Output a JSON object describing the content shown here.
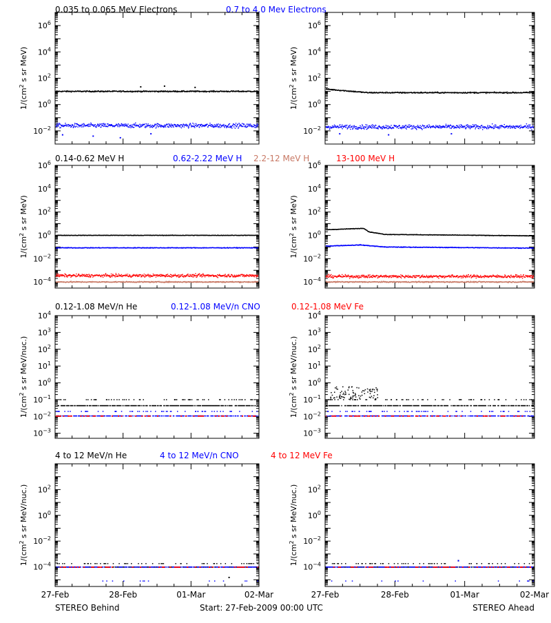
{
  "colors": {
    "black": "#000000",
    "blue": "#0000ff",
    "tan": "#c87864",
    "red": "#ff0000",
    "gray": "#888888"
  },
  "legends": [
    {
      "items": [
        {
          "text": "0.035 to 0.065 MeV Electrons",
          "color": "#000000"
        },
        {
          "text": "0.7 to 4.0 Mev Electrons",
          "color": "#0000ff"
        }
      ]
    },
    {
      "items": [
        {
          "text": "0.14-0.62 MeV H",
          "color": "#000000"
        },
        {
          "text": "0.62-2.22 MeV H",
          "color": "#0000ff"
        },
        {
          "text": "2.2-12 MeV H",
          "color": "#c87864"
        },
        {
          "text": "13-100 MeV H",
          "color": "#ff0000"
        }
      ]
    },
    {
      "items": [
        {
          "text": "0.12-1.08 MeV/n He",
          "color": "#000000"
        },
        {
          "text": "0.12-1.08 MeV/n CNO",
          "color": "#0000ff"
        },
        {
          "text": "0.12-1.08 MeV Fe",
          "color": "#ff0000"
        }
      ]
    },
    {
      "items": [
        {
          "text": "4 to 12 MeV/n He",
          "color": "#000000"
        },
        {
          "text": "4 to 12 MeV/n CNO",
          "color": "#0000ff"
        },
        {
          "text": "4 to 12 MeV Fe",
          "color": "#ff0000"
        }
      ]
    }
  ],
  "footer": {
    "left": "STEREO Behind",
    "center": "Start: 27-Feb-2009 00:00 UTC",
    "right": "STEREO Ahead"
  },
  "chart_data": [
    {
      "type": "scatter",
      "row": 0,
      "spacecraft": "STEREO Behind",
      "scale": "log",
      "ylabel_main": "1/(cm",
      "ylabel_sup": "2",
      "ylabel_tail": " s sr MeV)",
      "ylim": [
        0.001,
        10000000
      ],
      "yticks": [
        0.01,
        1,
        100,
        10000,
        1000000
      ],
      "xlabels": [
        "27-Feb",
        "28-Feb",
        "01-Mar",
        "02-Mar"
      ],
      "xdays": [
        0,
        1,
        2,
        3
      ],
      "series": [
        {
          "name": "0.035 to 0.065 MeV Electrons",
          "color": "#000000",
          "level": 10,
          "spread": 0.08,
          "outliers": [
            [
              1.6,
              25
            ],
            [
              2.05,
              20
            ],
            [
              1.25,
              22
            ]
          ]
        },
        {
          "name": "0.7 to 4.0 Mev Electrons",
          "color": "#0000ff",
          "level": 0.025,
          "spread": 0.28,
          "outliers": [
            [
              0.1,
              0.005
            ],
            [
              0.55,
              0.004
            ],
            [
              0.95,
              0.003
            ],
            [
              1.4,
              0.006
            ]
          ]
        }
      ]
    },
    {
      "type": "scatter",
      "row": 0,
      "spacecraft": "STEREO Ahead",
      "scale": "log",
      "ylabel_main": "1/(cm",
      "ylabel_sup": "2",
      "ylabel_tail": " s sr MeV)",
      "ylim": [
        0.001,
        10000000
      ],
      "yticks": [
        0.01,
        1,
        100,
        10000,
        1000000
      ],
      "xlabels": [
        "27-Feb",
        "28-Feb",
        "01-Mar",
        "02-Mar"
      ],
      "xdays": [
        0,
        1,
        2,
        3
      ],
      "series": [
        {
          "name": "0.035 to 0.065 MeV Electrons",
          "color": "#000000",
          "level": 9,
          "spread": 0.08,
          "bump": [
            [
              0,
              15
            ],
            [
              0.6,
              8
            ],
            [
              3,
              8
            ]
          ],
          "outliers": []
        },
        {
          "name": "0.7 to 4.0 Mev Electrons",
          "color": "#0000ff",
          "level": 0.02,
          "spread": 0.28,
          "outliers": [
            [
              0.2,
              0.006
            ],
            [
              0.9,
              0.005
            ],
            [
              1.8,
              0.006
            ]
          ]
        }
      ]
    },
    {
      "type": "scatter",
      "row": 1,
      "spacecraft": "STEREO Behind",
      "scale": "log",
      "ylabel_main": "1/(cm",
      "ylabel_sup": "2",
      "ylabel_tail": " s sr MeV)",
      "ylim": [
        3e-05,
        1000000
      ],
      "yticks": [
        0.0001,
        0.01,
        1,
        100,
        10000,
        1000000
      ],
      "xlabels": [
        "27-Feb",
        "28-Feb",
        "01-Mar",
        "02-Mar"
      ],
      "xdays": [
        0,
        1,
        2,
        3
      ],
      "series": [
        {
          "name": "0.14-0.62 MeV H",
          "color": "#000000",
          "level": 1,
          "spread": 0.04,
          "outliers": []
        },
        {
          "name": "0.62-2.22 MeV H",
          "color": "#0000ff",
          "level": 0.085,
          "spread": 0.05,
          "outliers": []
        },
        {
          "name": "13-100 MeV H",
          "color": "#ff0000",
          "level": 0.00035,
          "spread": 0.22,
          "outliers": []
        },
        {
          "name": "2.2-12 MeV H",
          "color": "#c87864",
          "level": 0.0001,
          "spread": 0.08,
          "outliers": []
        }
      ]
    },
    {
      "type": "scatter",
      "row": 1,
      "spacecraft": "STEREO Ahead",
      "scale": "log",
      "ylabel_main": "1/(cm",
      "ylabel_sup": "2",
      "ylabel_tail": " s sr MeV)",
      "ylim": [
        3e-05,
        1000000
      ],
      "yticks": [
        0.0001,
        0.01,
        1,
        100,
        10000,
        1000000
      ],
      "xlabels": [
        "27-Feb",
        "28-Feb",
        "01-Mar",
        "02-Mar"
      ],
      "xdays": [
        0,
        1,
        2,
        3
      ],
      "series": [
        {
          "name": "0.14-0.62 MeV H",
          "color": "#000000",
          "level": 0.9,
          "spread": 0.04,
          "bump": [
            [
              0,
              3
            ],
            [
              0.55,
              4
            ],
            [
              0.62,
              2
            ],
            [
              0.85,
              1.2
            ],
            [
              3,
              0.9
            ]
          ],
          "outliers": []
        },
        {
          "name": "0.62-2.22 MeV H",
          "color": "#0000ff",
          "level": 0.08,
          "spread": 0.05,
          "bump": [
            [
              0,
              0.12
            ],
            [
              0.5,
              0.15
            ],
            [
              0.85,
              0.1
            ],
            [
              3,
              0.08
            ]
          ],
          "outliers": []
        },
        {
          "name": "13-100 MeV H",
          "color": "#ff0000",
          "level": 0.0003,
          "spread": 0.22,
          "outliers": []
        },
        {
          "name": "2.2-12 MeV H",
          "color": "#c87864",
          "level": 0.0001,
          "spread": 0.08,
          "outliers": []
        }
      ]
    },
    {
      "type": "scatter",
      "row": 2,
      "spacecraft": "STEREO Behind",
      "scale": "log",
      "ylabel_main": "1/(cm",
      "ylabel_sup": "2",
      "ylabel_tail": " s sr MeV/nuc.)",
      "ylim": [
        0.0005,
        10000
      ],
      "yticks": [
        0.001,
        0.01,
        0.1,
        1,
        10,
        100,
        1000,
        10000
      ],
      "xlabels": [
        "27-Feb",
        "28-Feb",
        "01-Mar",
        "02-Mar"
      ],
      "xdays": [
        0,
        1,
        2,
        3
      ],
      "series": [
        {
          "name": "0.12-1.08 MeV/n He",
          "color": "#000000",
          "level": 0.045,
          "spread": 0.0,
          "sparseUpper": 0.1,
          "outliers": []
        },
        {
          "name": "0.12-1.08 MeV/n CNO",
          "color": "#0000ff",
          "level": 0.011,
          "spread": 0.0,
          "sparseUpper": 0.02,
          "outliers": []
        },
        {
          "name": "0.12-1.08 MeV Fe",
          "color": "#ff0000",
          "level": 0.011,
          "spread": 0.0,
          "sparse": true,
          "outliers": []
        }
      ]
    },
    {
      "type": "scatter",
      "row": 2,
      "spacecraft": "STEREO Ahead",
      "scale": "log",
      "ylabel_main": "1/(cm",
      "ylabel_sup": "2",
      "ylabel_tail": " s sr MeV/nuc.)",
      "ylim": [
        0.0005,
        10000
      ],
      "yticks": [
        0.001,
        0.01,
        0.1,
        1,
        10,
        100,
        1000,
        10000
      ],
      "xlabels": [
        "27-Feb",
        "28-Feb",
        "01-Mar",
        "02-Mar"
      ],
      "xdays": [
        0,
        1,
        2,
        3
      ],
      "series": [
        {
          "name": "0.12-1.08 MeV/n He",
          "color": "#000000",
          "level": 0.045,
          "spread": 0.0,
          "sparseUpper": 0.1,
          "cluster": [
            0.05,
            0.75,
            0.1,
            0.6
          ],
          "outliers": []
        },
        {
          "name": "0.12-1.08 MeV/n CNO",
          "color": "#0000ff",
          "level": 0.011,
          "spread": 0.0,
          "sparseUpper": 0.02,
          "outliers": []
        },
        {
          "name": "0.12-1.08 MeV Fe",
          "color": "#ff0000",
          "level": 0.011,
          "spread": 0.0,
          "sparse": true,
          "outliers": []
        }
      ]
    },
    {
      "type": "scatter",
      "row": 3,
      "spacecraft": "STEREO Behind",
      "scale": "log",
      "ylabel_main": "1/(cm",
      "ylabel_sup": "2",
      "ylabel_tail": " s sr MeV/nuc.)",
      "ylim": [
        3e-06,
        10000
      ],
      "yticks": [
        0.0001,
        0.01,
        1,
        100
      ],
      "xlabels": [
        "27-Feb",
        "28-Feb",
        "01-Mar",
        "02-Mar"
      ],
      "xdays": [
        0,
        1,
        2,
        3
      ],
      "series": [
        {
          "name": "4 to 12 MeV/n He",
          "color": "#000000",
          "level": 0.0001,
          "spread": 0.0,
          "sparseUpper": 0.00018,
          "outliers": [
            [
              2.55,
              1.5e-05
            ]
          ]
        },
        {
          "name": "4 to 12 MeV/n CNO",
          "color": "#0000ff",
          "level": 0.0001,
          "spread": 0.0,
          "sparseLower": 8e-06,
          "outliers": []
        },
        {
          "name": "4 to 12 MeV Fe",
          "color": "#ff0000",
          "level": 0.0001,
          "spread": 0.0,
          "sparse": true,
          "outliers": []
        }
      ]
    },
    {
      "type": "scatter",
      "row": 3,
      "spacecraft": "STEREO Ahead",
      "scale": "log",
      "ylabel_main": "1/(cm",
      "ylabel_sup": "2",
      "ylabel_tail": " s sr MeV/nuc.)",
      "ylim": [
        3e-06,
        10000
      ],
      "yticks": [
        0.0001,
        0.01,
        1,
        100
      ],
      "xlabels": [
        "27-Feb",
        "28-Feb",
        "01-Mar",
        "02-Mar"
      ],
      "xdays": [
        0,
        1,
        2,
        3
      ],
      "series": [
        {
          "name": "4 to 12 MeV/n He",
          "color": "#000000",
          "level": 0.0001,
          "spread": 0.0,
          "sparseUpper": 0.00018,
          "outliers": [
            [
              1.9,
              0.0003
            ]
          ]
        },
        {
          "name": "4 to 12 MeV/n CNO",
          "color": "#0000ff",
          "level": 0.0001,
          "spread": 0.0,
          "sparseLower": 8e-06,
          "outliers": [
            [
              1.9,
              0.0003
            ]
          ]
        },
        {
          "name": "4 to 12 MeV Fe",
          "color": "#ff0000",
          "level": 0.0001,
          "spread": 0.0,
          "sparse": true,
          "outliers": []
        }
      ]
    }
  ]
}
